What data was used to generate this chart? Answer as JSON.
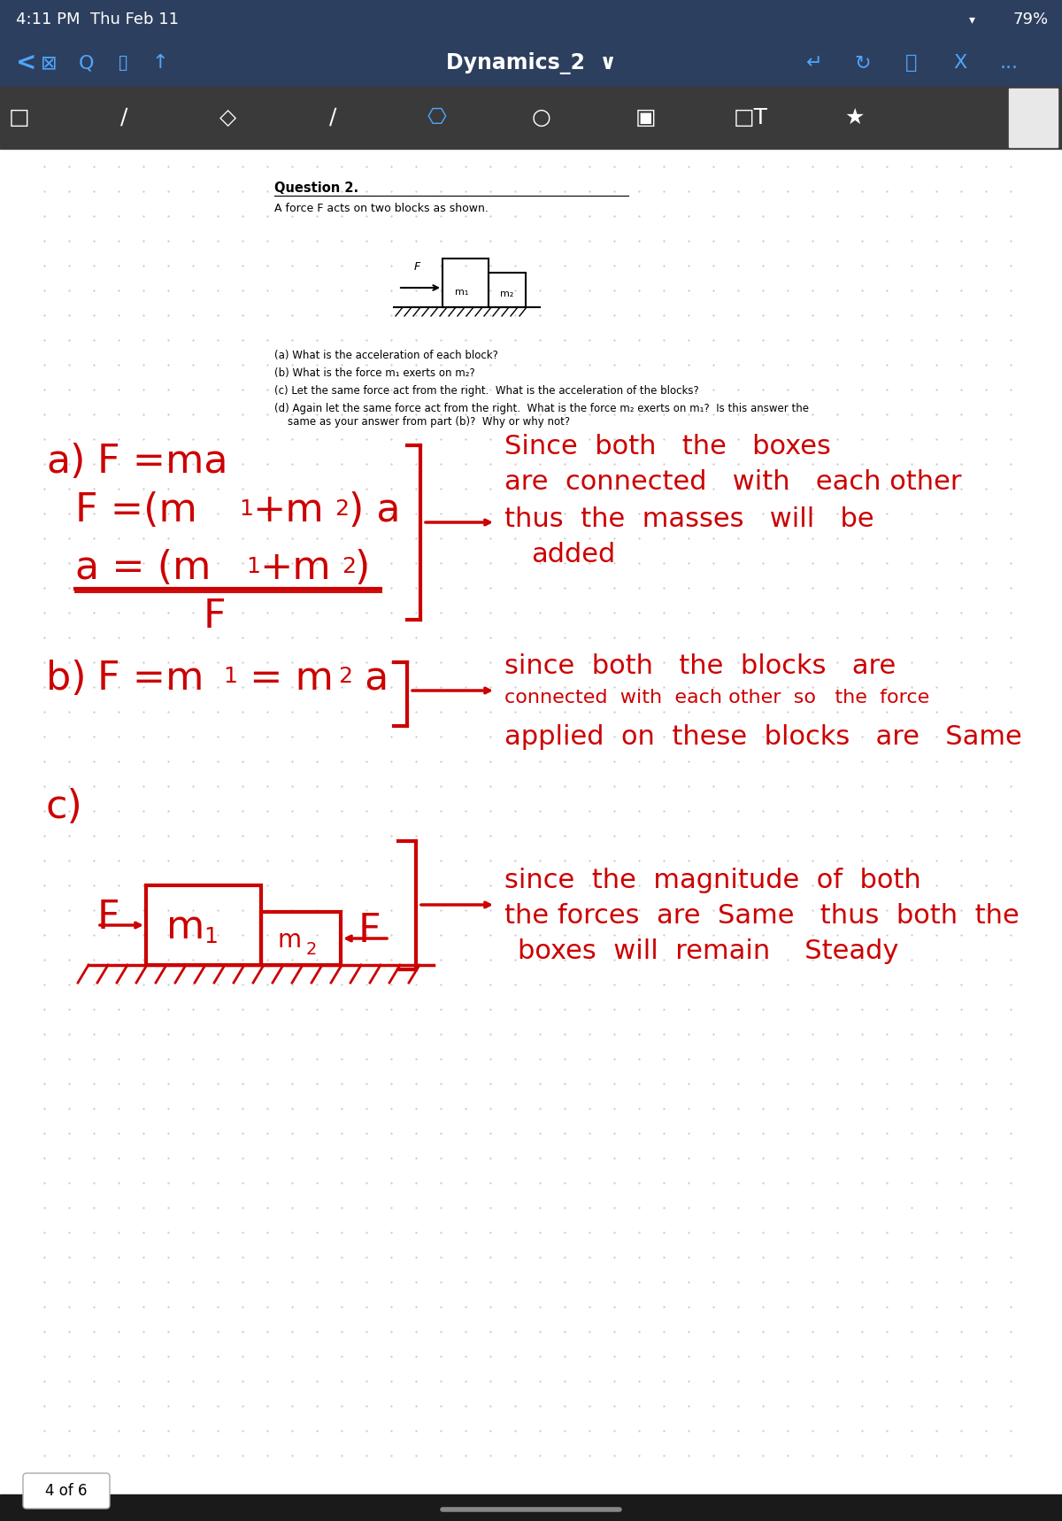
{
  "bg_color_top": "#2d3f5e",
  "bg_color_toolbar": "#3a3a3a",
  "bg_color_page": "#ffffff",
  "bg_color_dotted": "#f5f5f5",
  "status_bar_text": "4:11 PM  Thu Feb 11",
  "status_bar_right": "79%",
  "title_bar_text": "Dynamics_2 ∨",
  "question_title": "Question 2.",
  "question_text": "A force F acts on two blocks as shown.",
  "question_a": "(a) What is the acceleration of each block?",
  "question_b": "(b) What is the force m₁ exerts on m₂?",
  "question_c": "(c) Let the same force act from the right.  What is the acceleration of the blocks?",
  "question_d": "(d) Again let the same force act from the right.  What is the force m₂ exerts on m₁?  Is this answer the\n    same as your answer from part (b)?  Why or why not?",
  "page_indicator": "4 of 6",
  "handwriting_color": "#cc0000",
  "dot_color": "#cccccc"
}
